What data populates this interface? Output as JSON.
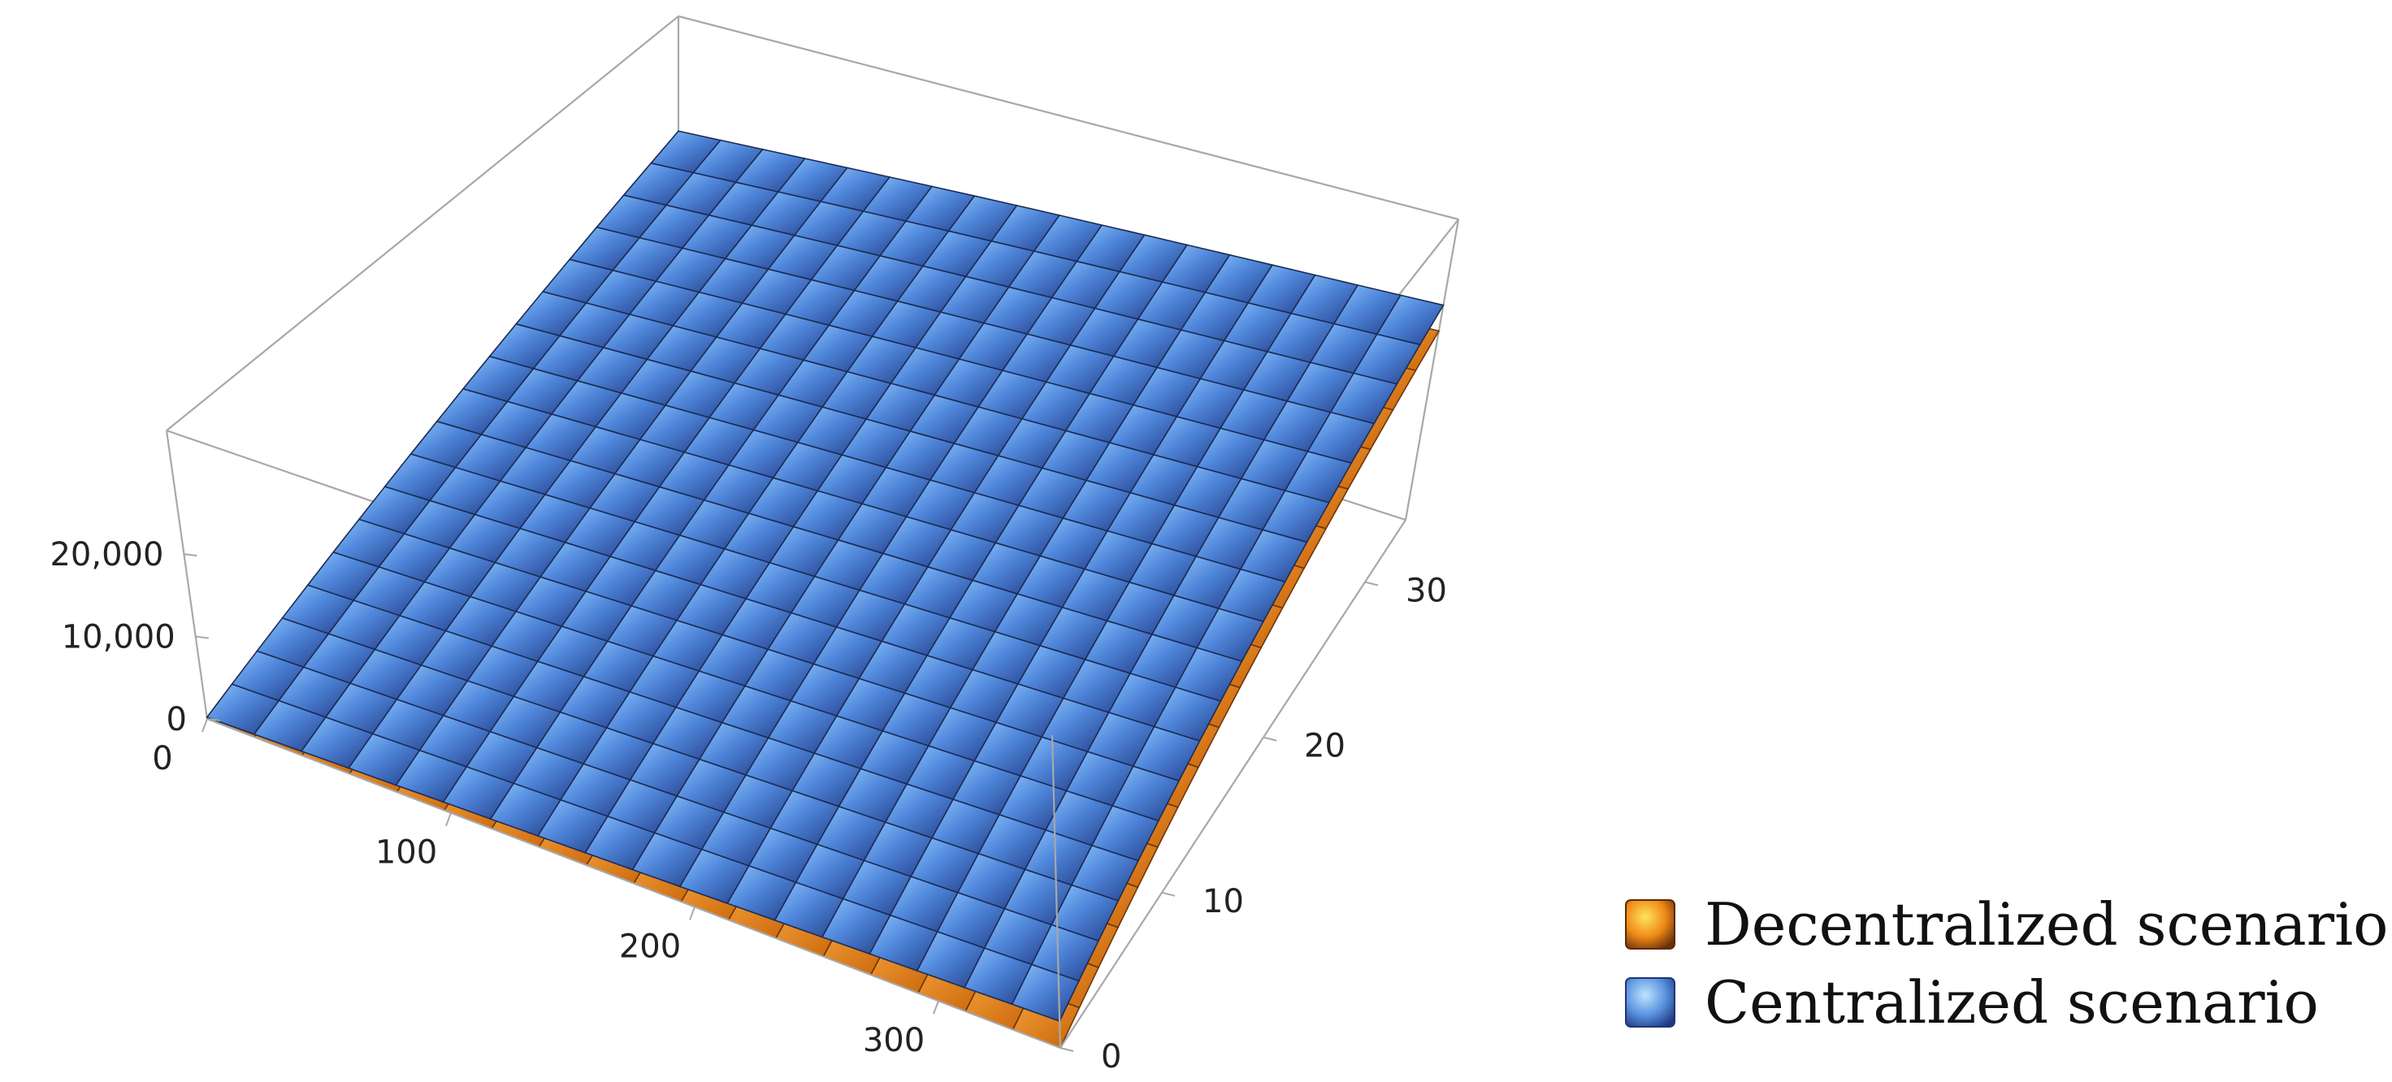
{
  "chart_data": {
    "type": "surface3d",
    "title": "",
    "x_axis": {
      "label": "",
      "ticks": [
        0,
        100,
        200,
        300
      ],
      "range": [
        0,
        350
      ]
    },
    "y_axis": {
      "label": "",
      "ticks": [
        0,
        10,
        20,
        30
      ],
      "range": [
        0,
        34
      ]
    },
    "z_axis": {
      "label": "",
      "ticks": [
        "0",
        "10,000",
        "20,000"
      ],
      "tick_values": [
        0,
        10000,
        20000
      ],
      "range": [
        0,
        35000
      ]
    },
    "box": "on",
    "mesh": "on",
    "legend_position": "bottom-right",
    "series": [
      {
        "name": "Decentralized scenario",
        "color": "#e07a10",
        "corner_values": {
          "x0_y0": 0,
          "x350_y0": 0,
          "x0_y34": 17000,
          "x350_y34": 22000
        }
      },
      {
        "name": "Centralized scenario",
        "color": "#3f6fc4",
        "corner_values": {
          "x0_y0": 200,
          "x350_y0": 3000,
          "x0_y34": 20000,
          "x350_y34": 25000
        }
      }
    ],
    "legend": [
      {
        "label": "Decentralized scenario",
        "color": "#e07a10"
      },
      {
        "label": "Centralized scenario",
        "color": "#3f6fc4"
      }
    ]
  }
}
